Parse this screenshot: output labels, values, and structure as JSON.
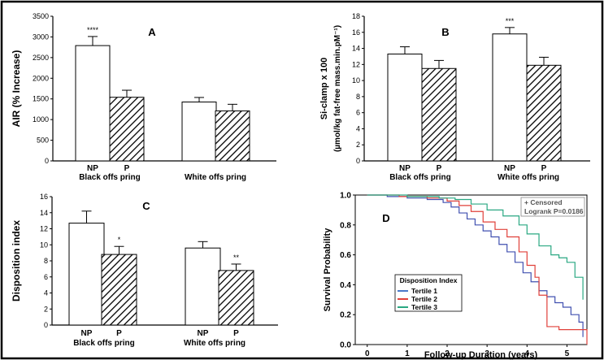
{
  "colors": {
    "frame": "#000000",
    "bar_np": "#ffffff",
    "bar_p_hatch": "#000000",
    "tertile1": "#4a78c8",
    "tertile2": "#e0403a",
    "tertile3": "#2aa882",
    "kaplan_tertile1": "#4050b0"
  },
  "chart_data": [
    {
      "id": "A",
      "type": "bar",
      "title": "A",
      "ylabel": "AIR (% Increase)",
      "ylim": [
        0,
        3500
      ],
      "yticks": [
        "0",
        "500",
        "1000",
        "1500",
        "2000",
        "2500",
        "3000",
        "3500"
      ],
      "group_labels": [
        "Black offs pring",
        "White offs pring"
      ],
      "bar_labels": [
        "NP",
        "P",
        "",
        ""
      ],
      "series": [
        {
          "name": "Black offspring",
          "values": [
            2790,
            1540
          ],
          "errors": [
            220,
            170
          ]
        },
        {
          "name": "White offspring",
          "values": [
            1425,
            1210
          ],
          "errors": [
            110,
            160
          ]
        }
      ],
      "annotations": [
        "****",
        "",
        "",
        ""
      ]
    },
    {
      "id": "B",
      "type": "bar",
      "title": "B",
      "ylabel_lines": [
        "Si-clamp x 100",
        "(µmol/kg fat-free mass.min.pM⁻¹)"
      ],
      "ylim": [
        0,
        18
      ],
      "yticks": [
        "0",
        "2",
        "4",
        "6",
        "8",
        "10",
        "12",
        "14",
        "16",
        "18"
      ],
      "group_labels": [
        "Black offs pring",
        "White offs pring"
      ],
      "bar_labels": [
        "NP",
        "P",
        "NP",
        "P"
      ],
      "series": [
        {
          "name": "Black offspring",
          "values": [
            13.3,
            11.5
          ],
          "errors": [
            0.9,
            1.0
          ]
        },
        {
          "name": "White offspring",
          "values": [
            15.8,
            11.9
          ],
          "errors": [
            0.8,
            1.0
          ]
        }
      ],
      "annotations": [
        "",
        "",
        "***",
        ""
      ]
    },
    {
      "id": "C",
      "type": "bar",
      "title": "C",
      "ylabel": "Disposition index",
      "ylim": [
        0,
        16
      ],
      "yticks": [
        "0",
        "2",
        "4",
        "6",
        "8",
        "10",
        "12",
        "14",
        "16"
      ],
      "group_labels": [
        "Black offs pring",
        "White offs pring"
      ],
      "bar_labels": [
        "NP",
        "P",
        "NP",
        "P"
      ],
      "series": [
        {
          "name": "Black offspring",
          "values": [
            12.7,
            8.8
          ],
          "errors": [
            1.5,
            1.0
          ]
        },
        {
          "name": "White offspring",
          "values": [
            9.6,
            6.8
          ],
          "errors": [
            0.8,
            0.8
          ]
        }
      ],
      "annotations": [
        "",
        "*",
        "",
        "**"
      ]
    },
    {
      "id": "D",
      "type": "line",
      "title": "D",
      "xlabel": "Follow-up Duration (years)",
      "ylabel": "Survival Probability",
      "xlim": [
        -0.3,
        5.5
      ],
      "ylim": [
        0,
        1.0
      ],
      "xticks": [
        "0",
        "1",
        "2",
        "3",
        "4",
        "5"
      ],
      "yticks": [
        "0.0",
        "0.2",
        "0.4",
        "0.6",
        "0.8",
        "1.0"
      ],
      "info_lines": [
        "+ Censored",
        "Logrank P=0.0186"
      ],
      "legend_title": "Disposition Index",
      "series": [
        {
          "name": "Tertile 1",
          "x": [
            0,
            0.5,
            1.0,
            1.5,
            1.9,
            2.1,
            2.3,
            2.5,
            2.7,
            2.9,
            3.1,
            3.3,
            3.5,
            3.7,
            3.9,
            4.1,
            4.3,
            4.5,
            4.7,
            4.9,
            5.1,
            5.3,
            5.4
          ],
          "y": [
            1.0,
            0.99,
            0.98,
            0.97,
            0.95,
            0.92,
            0.88,
            0.84,
            0.8,
            0.76,
            0.72,
            0.67,
            0.62,
            0.55,
            0.48,
            0.42,
            0.36,
            0.32,
            0.28,
            0.25,
            0.2,
            0.15,
            0.05
          ]
        },
        {
          "name": "Tertile 2",
          "x": [
            0,
            0.8,
            1.5,
            2.0,
            2.3,
            2.6,
            2.9,
            3.2,
            3.5,
            3.8,
            4.0,
            4.2,
            4.3,
            4.5,
            4.8,
            5.2,
            5.5
          ],
          "y": [
            1.0,
            0.99,
            0.98,
            0.96,
            0.93,
            0.89,
            0.82,
            0.77,
            0.72,
            0.62,
            0.53,
            0.45,
            0.33,
            0.12,
            0.1,
            0.1,
            0.0
          ]
        },
        {
          "name": "Tertile 3",
          "x": [
            0,
            1.0,
            1.8,
            2.2,
            2.6,
            3.0,
            3.4,
            3.8,
            4.0,
            4.3,
            4.6,
            4.8,
            5.0,
            5.2,
            5.4
          ],
          "y": [
            1.0,
            0.99,
            0.98,
            0.97,
            0.94,
            0.9,
            0.86,
            0.8,
            0.74,
            0.66,
            0.6,
            0.58,
            0.55,
            0.45,
            0.3
          ]
        }
      ]
    }
  ]
}
